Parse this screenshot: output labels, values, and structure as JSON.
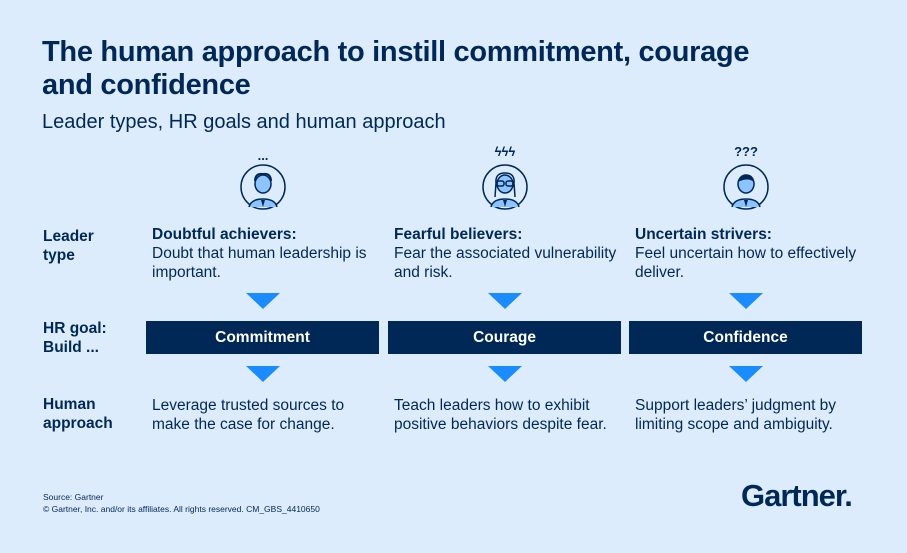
{
  "title": "The human approach to instill commitment, courage and confidence",
  "subtitle": "Leader types, HR goals and human approach",
  "row_labels": {
    "leader_type": "Leader type",
    "hr_goal": "HR goal: Build ...",
    "human_approach": "Human approach"
  },
  "columns": [
    {
      "marks": "...",
      "icon": "person-icon",
      "leader_name": "Doubtful achievers:",
      "leader_desc": "Doubt that human leadership is important.",
      "goal": "Commitment",
      "approach": "Leverage trusted sources to make the case for change."
    },
    {
      "marks": "ϟϟϟ",
      "icon": "person-glasses-icon",
      "leader_name": "Fearful believers:",
      "leader_desc": "Fear the associated vulnerability and risk.",
      "goal": "Courage",
      "approach": "Teach leaders how to exhibit positive behaviors despite fear."
    },
    {
      "marks": "???",
      "icon": "person-icon",
      "leader_name": "Uncertain strivers:",
      "leader_desc": "Feel uncertain how to effectively deliver.",
      "goal": "Confidence",
      "approach": "Support leaders’ judgment by limiting scope and ambiguity."
    }
  ],
  "footer": {
    "source": "Source: Gartner",
    "copyright": "© Gartner, Inc. and/or its affiliates. All rights reserved. CM_GBS_4410650"
  },
  "logo": "Gartner.",
  "colors": {
    "background": "#dcecfc",
    "navy": "#002856",
    "arrow": "#1a8cff"
  }
}
